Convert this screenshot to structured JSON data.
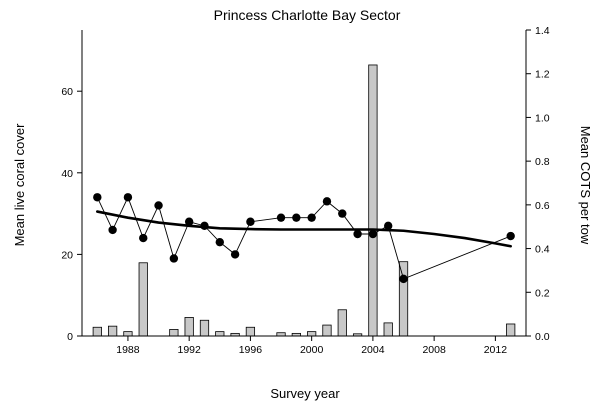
{
  "chart_data": {
    "type": "bar+line",
    "title": "Princess Charlotte Bay Sector",
    "xlabel": "Survey year",
    "ylabel_left": "Mean live coral cover",
    "ylabel_right": "Mean COTS per tow",
    "xlim": [
      1985,
      2014
    ],
    "ylim_left": [
      0,
      75
    ],
    "ylim_right": [
      0,
      1.4
    ],
    "x_ticks": [
      1988,
      1992,
      1996,
      2000,
      2004,
      2008,
      2012
    ],
    "y_ticks_left": [
      0,
      20,
      40,
      60
    ],
    "y_ticks_right": [
      0.0,
      0.2,
      0.4,
      0.6,
      0.8,
      1.0,
      1.2,
      1.4
    ],
    "y_tick_labels_right": [
      "0.0",
      "0.2",
      "0.4",
      "0.6",
      "0.8",
      "1.0",
      "1.2",
      "1.4"
    ],
    "cots_bars": {
      "axis": "right",
      "color": "#c8c8c8",
      "x": [
        1986,
        1987,
        1988,
        1989,
        1991,
        1992,
        1993,
        1994,
        1995,
        1996,
        1998,
        1999,
        2000,
        2001,
        2002,
        2003,
        2004,
        2005,
        2006,
        2013
      ],
      "values": [
        0.04,
        0.045,
        0.02,
        0.335,
        0.03,
        0.085,
        0.072,
        0.02,
        0.012,
        0.04,
        0.015,
        0.012,
        0.02,
        0.05,
        0.12,
        0.01,
        1.24,
        0.06,
        0.34,
        0.055
      ]
    },
    "coral_cover": {
      "axis": "left",
      "color": "#000000",
      "x": [
        1986,
        1987,
        1988,
        1989,
        1990,
        1991,
        1992,
        1993,
        1994,
        1995,
        1996,
        1998,
        1999,
        2000,
        2001,
        2002,
        2003,
        2004,
        2005,
        2006,
        2013
      ],
      "values": [
        34,
        26,
        34,
        24,
        32,
        19,
        28,
        27,
        23,
        20,
        28,
        29,
        29,
        29,
        33,
        30,
        25,
        25,
        27,
        14,
        24.5
      ]
    },
    "trend": {
      "axis": "left",
      "color": "#000000",
      "x": [
        1986,
        1988,
        1990,
        1992,
        1994,
        1996,
        1998,
        2000,
        2002,
        2004,
        2006,
        2008,
        2010,
        2012,
        2013
      ],
      "values": [
        30.5,
        29,
        27.8,
        27,
        26.4,
        26.2,
        26.1,
        26.1,
        26.1,
        26.1,
        25.8,
        25.0,
        24.0,
        22.7,
        22.0
      ]
    }
  }
}
